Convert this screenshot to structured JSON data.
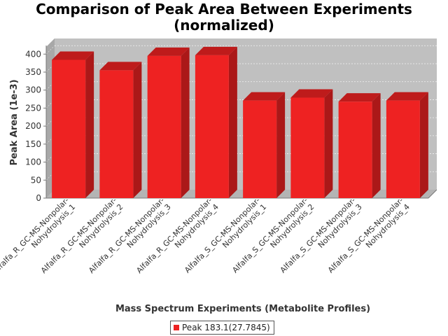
{
  "chart_data": {
    "type": "bar",
    "title_lines": [
      "Comparison of Peak Area Between Experiments",
      "(normalized)"
    ],
    "xlabel": "Mass Spectrum Experiments (Metabolite Profiles)",
    "ylabel": "Peak Area (1e-3)",
    "ylim": [
      0,
      420
    ],
    "yticks": [
      0,
      50,
      100,
      150,
      200,
      250,
      300,
      350,
      400
    ],
    "grid": true,
    "legend_position": "bottom",
    "categories": [
      [
        "Alfalfa_R_GC-MS-Nonpolar-",
        "Nohydrolysis_1"
      ],
      [
        "Alfalfa_R_GC-MS-Nonpolar-",
        "Nohydrolysis_2"
      ],
      [
        "Alfalfa_R_GC-MS-Nonpolar-",
        "Nohydrolysis_3"
      ],
      [
        "Alfalfa_R_GC-MS-Nonpolar-",
        "Nohydrolysis_4"
      ],
      [
        "Alfalfa_S_GC-MS-Nonpolar-",
        "Nohydrolysis_1"
      ],
      [
        "Alfalfa_S_GC-MS-Nonpolar-",
        "Nohydrolysis_2"
      ],
      [
        "Alfalfa_S_GC-MS-Nonpolar-",
        "Nohydrolysis_3"
      ],
      [
        "Alfalfa_S_GC-MS-Nonpolar-",
        "Nohydrolysis_4"
      ]
    ],
    "series": [
      {
        "name": "Peak 183.1(27.7845)",
        "color": "#ee2222",
        "values": [
          384,
          355,
          395,
          397,
          271,
          279,
          268,
          271
        ]
      }
    ]
  }
}
